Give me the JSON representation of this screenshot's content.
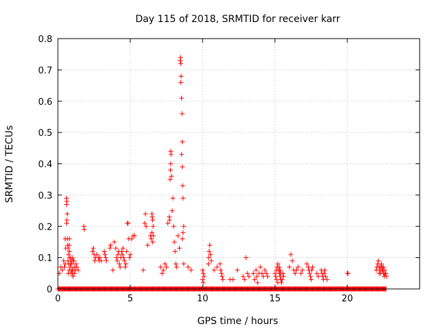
{
  "chart_data": {
    "type": "scatter",
    "title": "Day 115 of 2018, SRMTID for receiver karr",
    "xlabel": "GPS time / hours",
    "ylabel": "SRMTID / TECUs",
    "xlim": [
      0,
      25
    ],
    "ylim": [
      0,
      0.8
    ],
    "xticks": [
      0,
      5,
      10,
      15,
      20
    ],
    "yticks": [
      0,
      0.1,
      0.2,
      0.3,
      0.4,
      0.5,
      0.6,
      0.7,
      0.8
    ],
    "xtick_labels": [
      "0",
      "5",
      "10",
      "15",
      "20"
    ],
    "ytick_labels": [
      "0",
      "0.1",
      "0.2",
      "0.3",
      "0.4",
      "0.5",
      "0.6",
      "0.7",
      "0.8"
    ],
    "grid": true,
    "marker": "+",
    "color": "#ff0000",
    "baseline": {
      "y": 0,
      "x_ranges": [
        [
          0,
          22.7
        ]
      ],
      "step": 0.045
    },
    "series": [
      {
        "name": "SRMTID",
        "points": [
          [
            0.1,
            0.05
          ],
          [
            0.2,
            0.07
          ],
          [
            0.3,
            0.06
          ],
          [
            0.4,
            0.09
          ],
          [
            0.45,
            0.07
          ],
          [
            0.5,
            0.08
          ],
          [
            0.5,
            0.16
          ],
          [
            0.55,
            0.13
          ],
          [
            0.6,
            0.27
          ],
          [
            0.62,
            0.28
          ],
          [
            0.6,
            0.29
          ],
          [
            0.65,
            0.24
          ],
          [
            0.62,
            0.22
          ],
          [
            0.6,
            0.21
          ],
          [
            0.65,
            0.16
          ],
          [
            0.68,
            0.14
          ],
          [
            0.7,
            0.13
          ],
          [
            0.72,
            0.11
          ],
          [
            0.7,
            0.09
          ],
          [
            0.75,
            0.08
          ],
          [
            0.78,
            0.06
          ],
          [
            0.8,
            0.12
          ],
          [
            0.82,
            0.1
          ],
          [
            0.85,
            0.07
          ],
          [
            0.9,
            0.05
          ],
          [
            0.92,
            0.09
          ],
          [
            0.95,
            0.08
          ],
          [
            1.0,
            0.1
          ],
          [
            1.02,
            0.06
          ],
          [
            1.05,
            0.04
          ],
          [
            1.1,
            0.09
          ],
          [
            1.12,
            0.07
          ],
          [
            1.15,
            0.05
          ],
          [
            1.2,
            0.06
          ],
          [
            1.25,
            0.08
          ],
          [
            1.3,
            0.07
          ],
          [
            1.4,
            0.06
          ],
          [
            0.8,
            0.16
          ],
          [
            0.78,
            0.14
          ],
          [
            0.85,
            0.1
          ],
          [
            0.88,
            0.08
          ],
          [
            0.95,
            0.06
          ],
          [
            1.0,
            0.05
          ],
          [
            1.05,
            0.09
          ],
          [
            0.72,
            0.05
          ],
          [
            1.8,
            0.2
          ],
          [
            1.82,
            0.19
          ],
          [
            2.4,
            0.12
          ],
          [
            2.45,
            0.13
          ],
          [
            2.5,
            0.11
          ],
          [
            2.55,
            0.09
          ],
          [
            2.6,
            0.1
          ],
          [
            2.7,
            0.11
          ],
          [
            2.8,
            0.1
          ],
          [
            2.85,
            0.09
          ],
          [
            2.9,
            0.1
          ],
          [
            3.0,
            0.09
          ],
          [
            3.2,
            0.12
          ],
          [
            3.25,
            0.11
          ],
          [
            3.3,
            0.1
          ],
          [
            3.35,
            0.09
          ],
          [
            3.6,
            0.13
          ],
          [
            3.65,
            0.14
          ],
          [
            3.8,
            0.06
          ],
          [
            3.9,
            0.15
          ],
          [
            4.0,
            0.13
          ],
          [
            4.05,
            0.1
          ],
          [
            4.1,
            0.09
          ],
          [
            4.15,
            0.11
          ],
          [
            4.2,
            0.12
          ],
          [
            4.25,
            0.08
          ],
          [
            4.3,
            0.07
          ],
          [
            4.35,
            0.1
          ],
          [
            4.4,
            0.12
          ],
          [
            4.45,
            0.11
          ],
          [
            4.5,
            0.13
          ],
          [
            4.55,
            0.1
          ],
          [
            4.6,
            0.09
          ],
          [
            4.65,
            0.07
          ],
          [
            4.7,
            0.08
          ],
          [
            4.75,
            0.12
          ],
          [
            4.8,
            0.21
          ],
          [
            4.85,
            0.21
          ],
          [
            4.9,
            0.16
          ],
          [
            4.95,
            0.1
          ],
          [
            5.0,
            0.11
          ],
          [
            5.1,
            0.16
          ],
          [
            5.2,
            0.17
          ],
          [
            5.3,
            0.17
          ],
          [
            5.9,
            0.06
          ],
          [
            6.0,
            0.21
          ],
          [
            6.05,
            0.24
          ],
          [
            6.1,
            0.2
          ],
          [
            6.2,
            0.14
          ],
          [
            6.4,
            0.17
          ],
          [
            6.45,
            0.16
          ],
          [
            6.5,
            0.24
          ],
          [
            6.52,
            0.23
          ],
          [
            6.55,
            0.22
          ],
          [
            6.58,
            0.2
          ],
          [
            6.5,
            0.18
          ],
          [
            6.55,
            0.15
          ],
          [
            6.6,
            0.17
          ],
          [
            7.1,
            0.07
          ],
          [
            7.2,
            0.05
          ],
          [
            7.3,
            0.06
          ],
          [
            7.4,
            0.08
          ],
          [
            7.5,
            0.07
          ],
          [
            7.6,
            0.21
          ],
          [
            7.7,
            0.23
          ],
          [
            7.72,
            0.22
          ],
          [
            7.75,
            0.35
          ],
          [
            7.78,
            0.38
          ],
          [
            7.8,
            0.4
          ],
          [
            7.82,
            0.43
          ],
          [
            7.8,
            0.44
          ],
          [
            7.85,
            0.36
          ],
          [
            7.9,
            0.25
          ],
          [
            7.95,
            0.29
          ],
          [
            8.0,
            0.2
          ],
          [
            8.05,
            0.15
          ],
          [
            8.1,
            0.12
          ],
          [
            8.15,
            0.08
          ],
          [
            8.2,
            0.07
          ],
          [
            8.3,
            0.17
          ],
          [
            8.4,
            0.13
          ],
          [
            8.45,
            0.73
          ],
          [
            8.48,
            0.74
          ],
          [
            8.5,
            0.72
          ],
          [
            8.52,
            0.68
          ],
          [
            8.5,
            0.66
          ],
          [
            8.55,
            0.61
          ],
          [
            8.58,
            0.56
          ],
          [
            8.6,
            0.47
          ],
          [
            8.55,
            0.43
          ],
          [
            8.6,
            0.39
          ],
          [
            8.62,
            0.33
          ],
          [
            8.65,
            0.29
          ],
          [
            8.7,
            0.2
          ],
          [
            8.65,
            0.18
          ],
          [
            8.6,
            0.16
          ],
          [
            8.7,
            0.08
          ],
          [
            9.0,
            0.07
          ],
          [
            9.2,
            0.06
          ],
          [
            10.0,
            0.06
          ],
          [
            10.05,
            0.05
          ],
          [
            10.1,
            0.04
          ],
          [
            10.0,
            0.03
          ],
          [
            10.05,
            0.02
          ],
          [
            10.4,
            0.08
          ],
          [
            10.42,
            0.1
          ],
          [
            10.45,
            0.12
          ],
          [
            10.5,
            0.14
          ],
          [
            10.55,
            0.11
          ],
          [
            10.6,
            0.09
          ],
          [
            10.8,
            0.06
          ],
          [
            11.0,
            0.07
          ],
          [
            11.2,
            0.08
          ],
          [
            11.25,
            0.06
          ],
          [
            11.3,
            0.05
          ],
          [
            11.35,
            0.04
          ],
          [
            11.4,
            0.03
          ],
          [
            11.9,
            0.03
          ],
          [
            12.1,
            0.03
          ],
          [
            12.4,
            0.06
          ],
          [
            12.8,
            0.04
          ],
          [
            12.9,
            0.03
          ],
          [
            13.0,
            0.1
          ],
          [
            13.1,
            0.05
          ],
          [
            13.2,
            0.04
          ],
          [
            13.5,
            0.05
          ],
          [
            13.6,
            0.03
          ],
          [
            13.7,
            0.06
          ],
          [
            13.75,
            0.04
          ],
          [
            13.8,
            0.02
          ],
          [
            13.9,
            0.05
          ],
          [
            14.0,
            0.07
          ],
          [
            14.1,
            0.05
          ],
          [
            14.2,
            0.04
          ],
          [
            14.3,
            0.06
          ],
          [
            14.4,
            0.05
          ],
          [
            14.5,
            0.04
          ],
          [
            15.0,
            0.05
          ],
          [
            15.05,
            0.04
          ],
          [
            15.1,
            0.06
          ],
          [
            15.15,
            0.07
          ],
          [
            15.2,
            0.08
          ],
          [
            15.25,
            0.06
          ],
          [
            15.3,
            0.05
          ],
          [
            15.35,
            0.04
          ],
          [
            15.4,
            0.03
          ],
          [
            15.45,
            0.02
          ],
          [
            15.5,
            0.03
          ],
          [
            15.55,
            0.05
          ],
          [
            15.1,
            0.03
          ],
          [
            15.2,
            0.02
          ],
          [
            15.3,
            0.07
          ],
          [
            15.35,
            0.06
          ],
          [
            15.4,
            0.05
          ],
          [
            15.6,
            0.04
          ],
          [
            16.0,
            0.07
          ],
          [
            16.1,
            0.11
          ],
          [
            16.2,
            0.09
          ],
          [
            16.3,
            0.06
          ],
          [
            16.4,
            0.05
          ],
          [
            16.5,
            0.06
          ],
          [
            16.6,
            0.07
          ],
          [
            16.8,
            0.05
          ],
          [
            16.9,
            0.06
          ],
          [
            17.2,
            0.08
          ],
          [
            17.3,
            0.07
          ],
          [
            17.35,
            0.06
          ],
          [
            17.4,
            0.05
          ],
          [
            17.45,
            0.04
          ],
          [
            17.5,
            0.03
          ],
          [
            17.55,
            0.06
          ],
          [
            17.6,
            0.07
          ],
          [
            17.9,
            0.05
          ],
          [
            18.0,
            0.04
          ],
          [
            18.2,
            0.06
          ],
          [
            18.25,
            0.05
          ],
          [
            18.3,
            0.04
          ],
          [
            18.35,
            0.03
          ],
          [
            18.4,
            0.05
          ],
          [
            18.45,
            0.06
          ],
          [
            18.5,
            0.04
          ],
          [
            18.6,
            0.03
          ],
          [
            20.0,
            0.05
          ],
          [
            20.05,
            0.05
          ],
          [
            22.0,
            0.06
          ],
          [
            22.05,
            0.07
          ],
          [
            22.1,
            0.08
          ],
          [
            22.15,
            0.09
          ],
          [
            22.2,
            0.07
          ],
          [
            22.25,
            0.06
          ],
          [
            22.3,
            0.05
          ],
          [
            22.35,
            0.08
          ],
          [
            22.4,
            0.07
          ],
          [
            22.45,
            0.06
          ],
          [
            22.5,
            0.05
          ],
          [
            22.55,
            0.04
          ],
          [
            22.6,
            0.06
          ],
          [
            22.65,
            0.05
          ],
          [
            22.7,
            0.04
          ],
          [
            22.2,
            0.05
          ],
          [
            22.3,
            0.07
          ],
          [
            22.4,
            0.06
          ],
          [
            22.5,
            0.07
          ],
          [
            22.6,
            0.05
          ]
        ]
      }
    ]
  }
}
